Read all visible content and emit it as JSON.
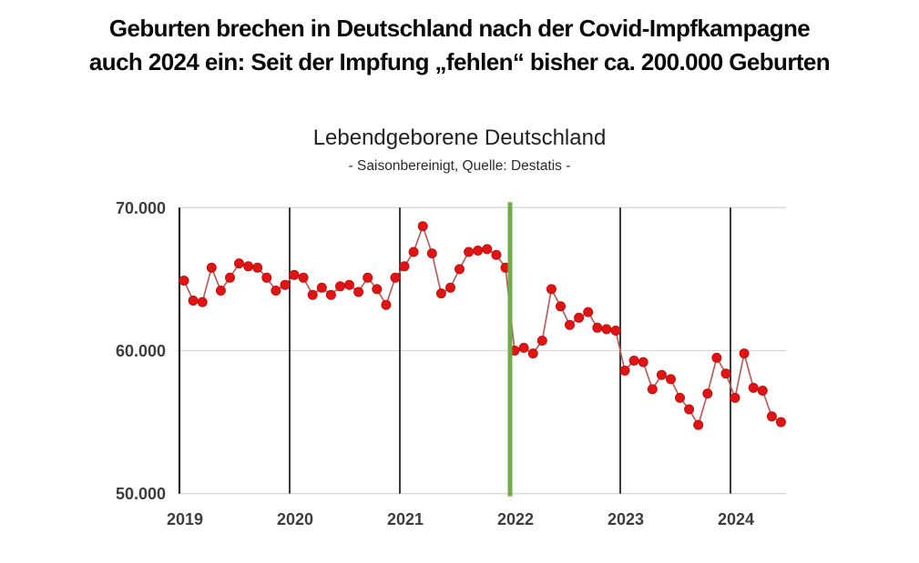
{
  "headline": {
    "line1": "Geburten brechen in Deutschland nach der Covid-Impfkampagne",
    "line2": "auch 2024 ein: Seit der Impfung „fehlen“ bisher ca. 200.000 Geburten"
  },
  "chart": {
    "title": "Lebendgeborene Deutschland",
    "subtitle": "- Saisonbereinigt, Quelle: Destatis -"
  },
  "chart_data": {
    "type": "line",
    "title": "Lebendgeborene Deutschland",
    "subtitle": "- Saisonbereinigt, Quelle: Destatis -",
    "x_unit": "month",
    "x_range": [
      "2019-01",
      "2024-06"
    ],
    "x_tick_labels": [
      "2019",
      "2020",
      "2021",
      "2022",
      "2023",
      "2024"
    ],
    "y_tick_labels": [
      "70.000",
      "60.000",
      "50.000"
    ],
    "y_tick_values": [
      70000,
      60000,
      50000
    ],
    "ylim": [
      50000,
      70000
    ],
    "grid": "horizontal",
    "legend": "none",
    "highlight_year": "2022",
    "values": [
      64900,
      63500,
      63400,
      65800,
      64200,
      65100,
      66100,
      65900,
      65800,
      65100,
      64200,
      64600,
      65300,
      65100,
      63900,
      64400,
      63900,
      64500,
      64600,
      64100,
      65100,
      64300,
      63200,
      65100,
      65900,
      66900,
      68700,
      66800,
      64000,
      64400,
      65700,
      66900,
      67000,
      67100,
      66700,
      65800,
      60000,
      60200,
      59800,
      60700,
      64300,
      63100,
      61800,
      62300,
      62700,
      61600,
      61500,
      61400,
      58600,
      59300,
      59200,
      57300,
      58300,
      58000,
      56700,
      55900,
      54800,
      57000,
      59500,
      58400,
      56700,
      59800,
      57400,
      57200,
      55400,
      55000
    ],
    "colors": {
      "dot": "#e11414",
      "dot_border": "#c40f0f",
      "line": "#b5605c",
      "year_line": "#262626",
      "highlight": "#70ad47",
      "grid": "#d9d9d9",
      "tick_text": "#3d3d3d"
    }
  }
}
